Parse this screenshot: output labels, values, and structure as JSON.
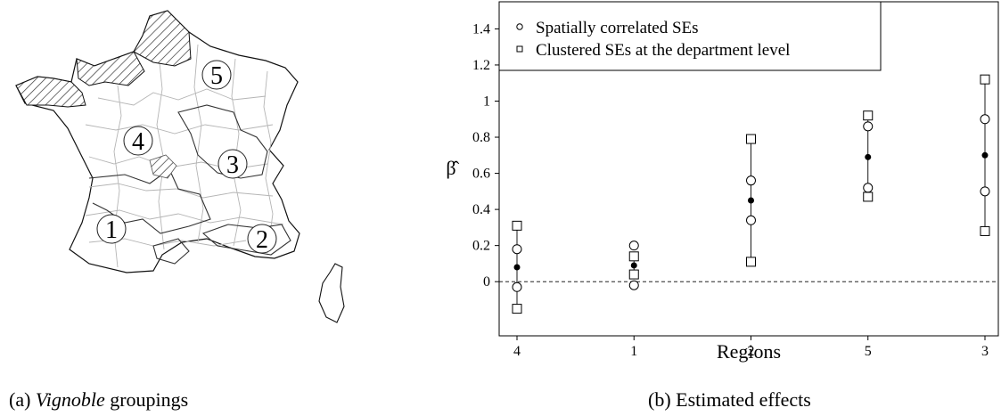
{
  "panel_a": {
    "caption_prefix": "(a) ",
    "caption_em": "Vignoble",
    "caption_suffix": " groupings",
    "regions": [
      {
        "label": "5"
      },
      {
        "label": "4"
      },
      {
        "label": "3"
      },
      {
        "label": "1"
      },
      {
        "label": "2"
      }
    ]
  },
  "panel_b": {
    "caption": "(b) Estimated effects"
  },
  "chart_data": {
    "type": "scatter",
    "xlabel": "Regions",
    "ylabel": "β̂",
    "categories": [
      "4",
      "1",
      "2",
      "5",
      "3"
    ],
    "ylim": [
      -0.3,
      1.55
    ],
    "yticks": [
      0,
      0.2,
      0.4,
      0.6,
      0.8,
      1,
      1.2,
      1.4
    ],
    "ytick_labels": [
      "0",
      "0.2",
      "0.4",
      "0.6",
      "0.8",
      "1",
      "1.2",
      "1.4"
    ],
    "reference_line": 0,
    "legend": {
      "position": "top-right",
      "entries": [
        "Spatially correlated SEs",
        "Clustered SEs at the department level"
      ]
    },
    "series": [
      {
        "name": "estimate",
        "marker": "filled-circle",
        "values": [
          0.08,
          0.09,
          0.45,
          0.69,
          0.7
        ]
      },
      {
        "name": "Spatially correlated SEs",
        "marker": "open-circle",
        "lower": [
          -0.03,
          -0.02,
          0.34,
          0.52,
          0.5
        ],
        "upper": [
          0.18,
          0.2,
          0.56,
          0.86,
          0.9
        ]
      },
      {
        "name": "Clustered SEs at the department level",
        "marker": "open-square",
        "lower": [
          -0.15,
          0.04,
          0.11,
          0.47,
          0.28
        ],
        "upper": [
          0.31,
          0.14,
          0.79,
          0.92,
          1.12
        ]
      }
    ]
  }
}
